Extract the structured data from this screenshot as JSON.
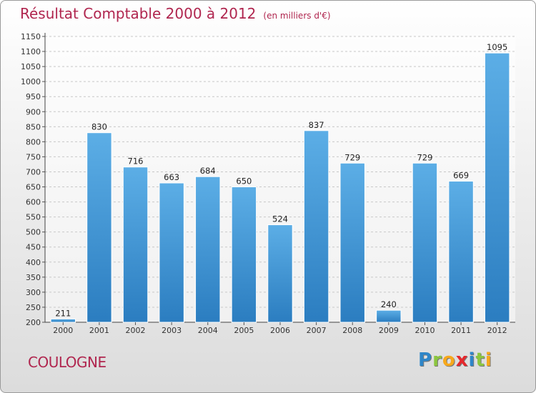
{
  "header": {
    "title": "Résultat Comptable 2000 à 2012",
    "subtitle": "(en milliers d'€)"
  },
  "footer": {
    "commune": "COULOGNE",
    "brand_letters": [
      {
        "ch": "P",
        "color": "#2e86c9"
      },
      {
        "ch": "r",
        "color": "#8cc63f"
      },
      {
        "ch": "o",
        "color": "#f7a81b"
      },
      {
        "ch": "x",
        "color": "#e5282d"
      },
      {
        "ch": "i",
        "color": "#2e86c9"
      },
      {
        "ch": "t",
        "color": "#8cc63f"
      },
      {
        "ch": "i",
        "color": "#f7a81b"
      }
    ]
  },
  "chart_data": {
    "type": "bar",
    "categories": [
      "2000",
      "2001",
      "2002",
      "2003",
      "2004",
      "2005",
      "2006",
      "2007",
      "2008",
      "2009",
      "2010",
      "2011",
      "2012"
    ],
    "values": [
      211,
      830,
      716,
      663,
      684,
      650,
      524,
      837,
      729,
      240,
      729,
      669,
      1095
    ],
    "value_labels": [
      "211",
      "830",
      "716",
      "663",
      "684",
      "650",
      "524",
      "837",
      "729",
      "240",
      "729",
      "669",
      "1095"
    ],
    "ylim": [
      200,
      1150
    ],
    "yticks": [
      200,
      250,
      300,
      350,
      400,
      450,
      500,
      550,
      600,
      650,
      700,
      750,
      800,
      850,
      900,
      950,
      1000,
      1050,
      1100,
      1150
    ],
    "grid": true,
    "bar_color_top": "#5caee6",
    "bar_color_bottom": "#2b7dc0"
  }
}
